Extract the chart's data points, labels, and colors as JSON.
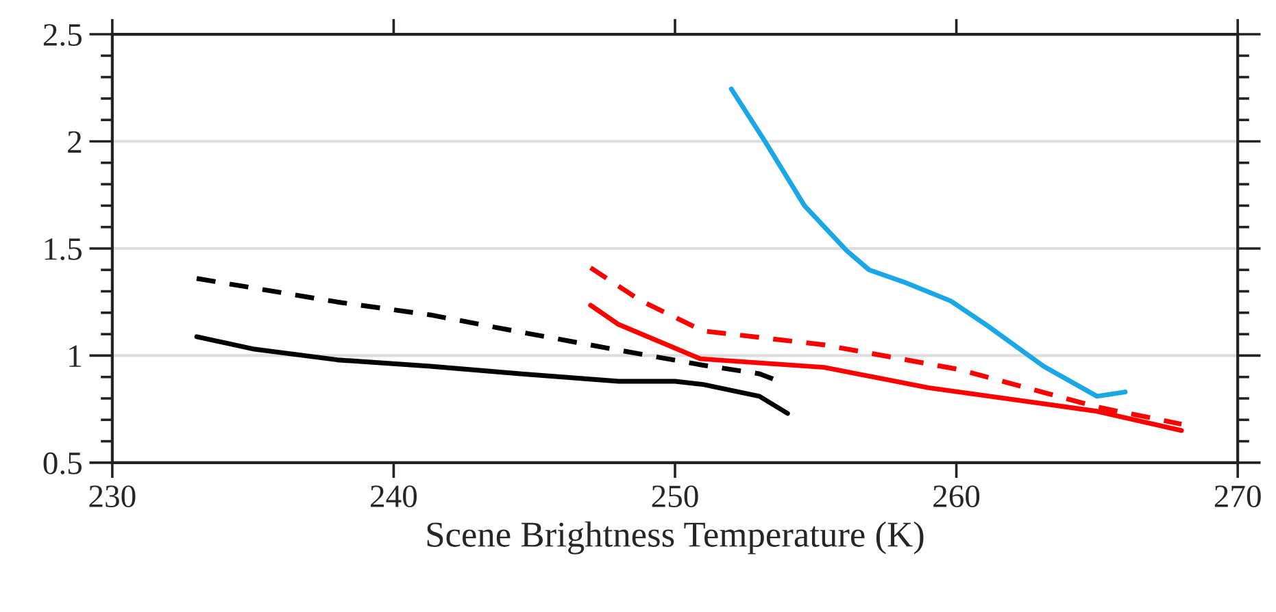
{
  "chart_data": {
    "type": "line",
    "xlabel": "Scene Brightness Temperature (K)",
    "xlim": [
      230,
      270
    ],
    "xticks": [
      230,
      240,
      250,
      260,
      270
    ],
    "ylim": [
      0.5,
      2.5
    ],
    "yticks": [
      0.5,
      1,
      1.5,
      2,
      2.5
    ],
    "grid": "y",
    "series": [
      {
        "color": "#000000",
        "line_style": "solid",
        "x": [
          233,
          235.05,
          238,
          241.3,
          244.5,
          248,
          250,
          251,
          253,
          254
        ],
        "values": [
          1.088,
          1.03,
          0.98,
          0.95,
          0.915,
          0.88,
          0.88,
          0.865,
          0.81,
          0.73
        ]
      },
      {
        "color": "#000000",
        "line_style": "dashed",
        "x": [
          233,
          238,
          241.3,
          244.5,
          247.8,
          251,
          253,
          253.7
        ],
        "values": [
          1.36,
          1.25,
          1.19,
          1.11,
          1.03,
          0.955,
          0.915,
          0.88
        ]
      },
      {
        "color": "#ff0000",
        "line_style": "solid",
        "x": [
          247,
          248,
          250.9,
          255.3,
          259,
          265,
          268
        ],
        "values": [
          1.235,
          1.145,
          0.985,
          0.945,
          0.85,
          0.74,
          0.65
        ]
      },
      {
        "color": "#ff0000",
        "line_style": "dashed",
        "x": [
          247,
          248.8,
          251,
          255.3,
          260.1,
          265,
          268
        ],
        "values": [
          1.41,
          1.255,
          1.115,
          1.05,
          0.935,
          0.76,
          0.68
        ]
      },
      {
        "color": "#1aa7e6",
        "line_style": "solid",
        "x": [
          252,
          253.2,
          254.6,
          256.1,
          256.9,
          258.2,
          259.8,
          261.1,
          263.1,
          265,
          266
        ],
        "values": [
          2.245,
          2.0,
          1.7,
          1.49,
          1.4,
          1.34,
          1.255,
          1.14,
          0.95,
          0.81,
          0.83
        ]
      }
    ]
  }
}
